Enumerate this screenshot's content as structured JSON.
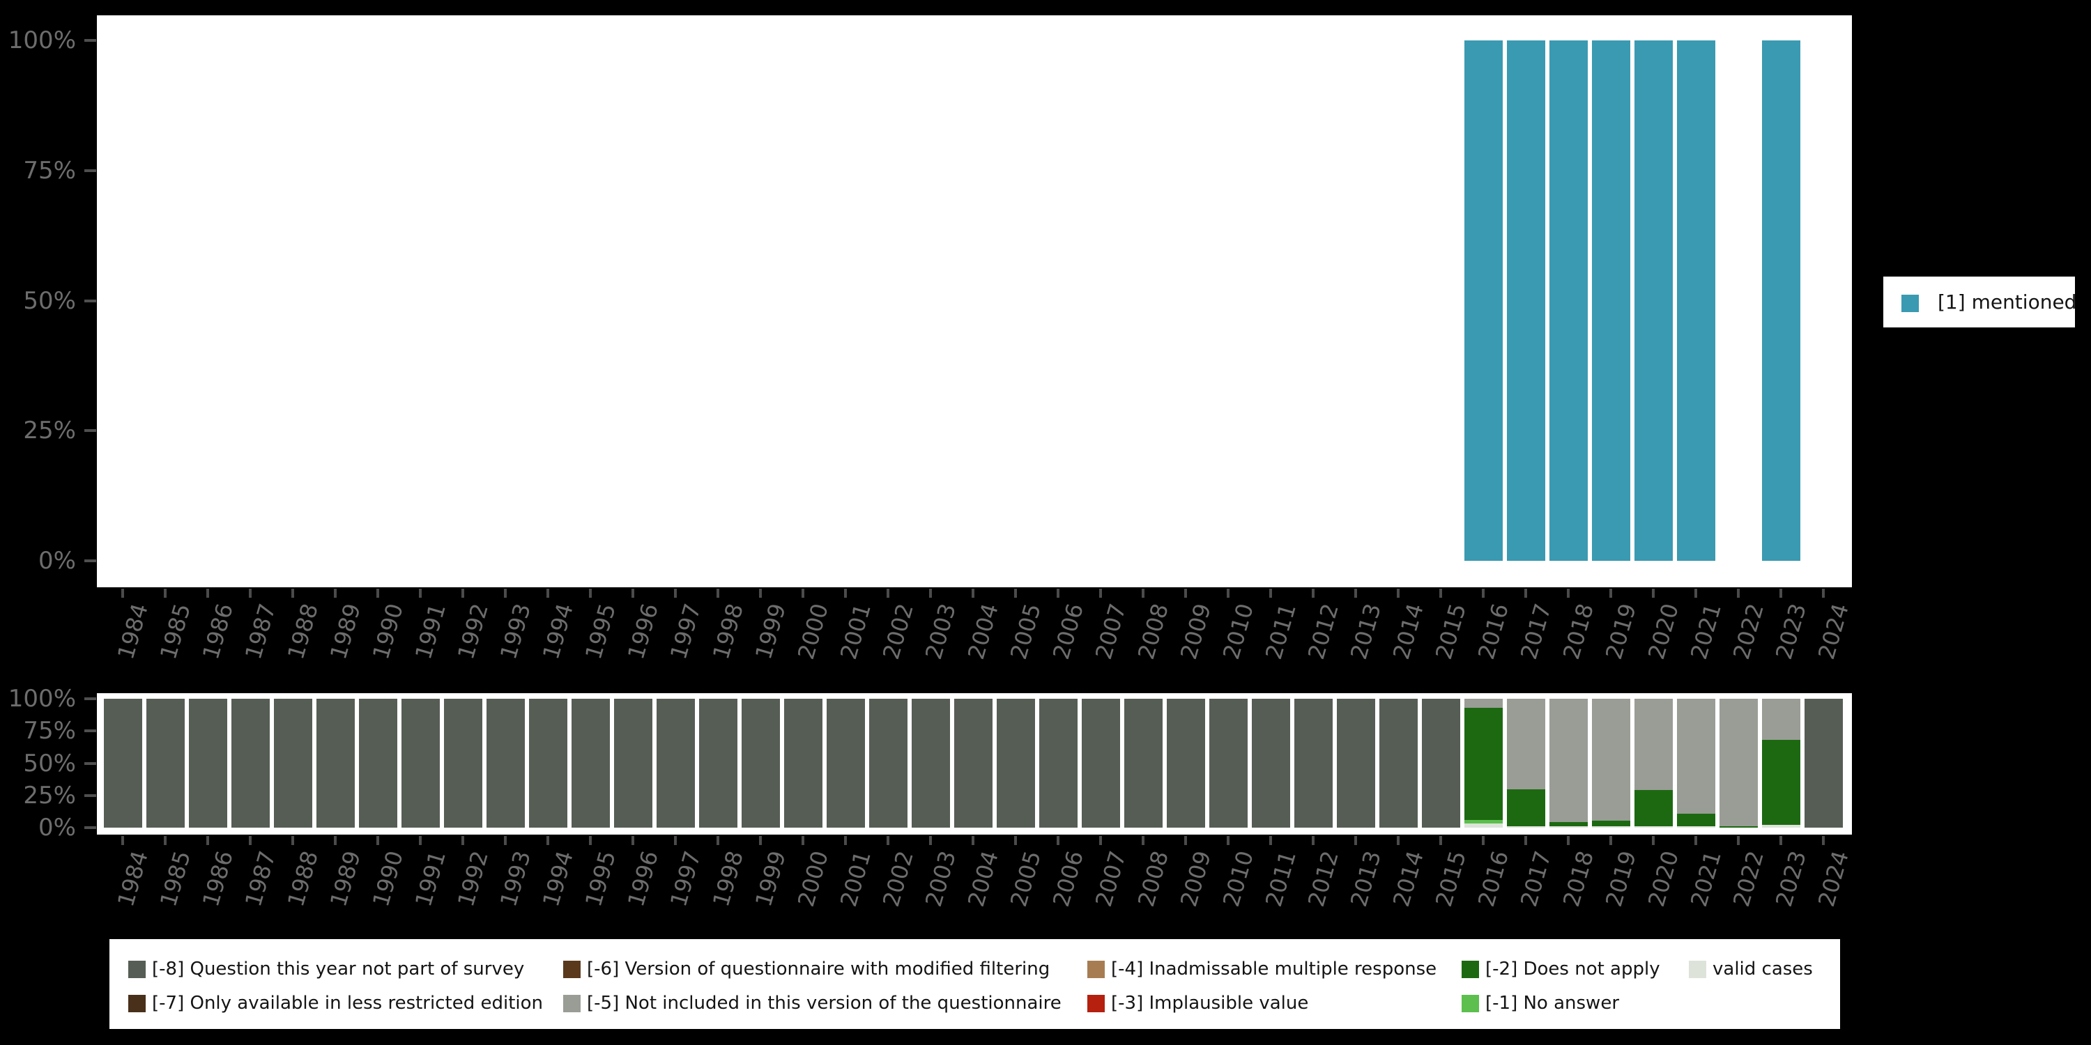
{
  "background": "#000000",
  "accent_teal": "#3a9ab1",
  "main_legend": {
    "label": "[1] mentioned",
    "color": "#3a9ab1"
  },
  "missing_legend": {
    "items": [
      {
        "label": "[-8] Question this year not part of survey",
        "color": "#565d55",
        "col": 0,
        "row": 0
      },
      {
        "label": "[-7] Only available in less restricted edition",
        "color": "#49301b",
        "col": 0,
        "row": 1
      },
      {
        "label": "[-6] Version of questionnaire with modified filtering",
        "color": "#59381b",
        "col": 1,
        "row": 0
      },
      {
        "label": "[-5] Not included in this version of the questionnaire",
        "color": "#999d95",
        "col": 1,
        "row": 1
      },
      {
        "label": "[-4] Inadmissable multiple response",
        "color": "#a87c52",
        "col": 2,
        "row": 0
      },
      {
        "label": "[-3] Implausible value",
        "color": "#b5200f",
        "col": 2,
        "row": 1
      },
      {
        "label": "[-2] Does not apply",
        "color": "#1d6912",
        "col": 3,
        "row": 0
      },
      {
        "label": "[-1] No answer",
        "color": "#5cbf4e",
        "col": 3,
        "row": 1
      },
      {
        "label": "valid cases",
        "color": "#dde3d9",
        "col": 4,
        "row": 0
      }
    ]
  },
  "chart_data": [
    {
      "type": "bar",
      "title": "",
      "categories": [
        1984,
        1985,
        1986,
        1987,
        1988,
        1989,
        1990,
        1991,
        1992,
        1993,
        1994,
        1995,
        1996,
        1997,
        1998,
        1999,
        2000,
        2001,
        2002,
        2003,
        2004,
        2005,
        2006,
        2007,
        2008,
        2009,
        2010,
        2011,
        2012,
        2013,
        2014,
        2015,
        2016,
        2017,
        2018,
        2019,
        2020,
        2021,
        2022,
        2023,
        2024
      ],
      "yticks": [
        "100%",
        "75%",
        "50%",
        "25%",
        "0%"
      ],
      "ylim": [
        0,
        100
      ],
      "legend_position": "right",
      "series": [
        {
          "name": "[1] mentioned",
          "color": "#3a9ab1",
          "values": [
            0,
            0,
            0,
            0,
            0,
            0,
            0,
            0,
            0,
            0,
            0,
            0,
            0,
            0,
            0,
            0,
            0,
            0,
            0,
            0,
            0,
            0,
            0,
            0,
            0,
            0,
            0,
            0,
            0,
            0,
            0,
            0,
            100,
            100,
            100,
            100,
            100,
            100,
            0,
            100,
            0
          ]
        }
      ]
    },
    {
      "type": "bar",
      "stacked": true,
      "title": "",
      "categories": [
        1984,
        1985,
        1986,
        1987,
        1988,
        1989,
        1990,
        1991,
        1992,
        1993,
        1994,
        1995,
        1996,
        1997,
        1998,
        1999,
        2000,
        2001,
        2002,
        2003,
        2004,
        2005,
        2006,
        2007,
        2008,
        2009,
        2010,
        2011,
        2012,
        2013,
        2014,
        2015,
        2016,
        2017,
        2018,
        2019,
        2020,
        2021,
        2022,
        2023,
        2024
      ],
      "yticks": [
        "100%",
        "75%",
        "50%",
        "25%",
        "0%"
      ],
      "ylim": [
        0,
        100
      ],
      "legend_position": "bottom",
      "series": [
        {
          "name": "[-8] Question this year not part of survey",
          "color": "#565d55",
          "values": [
            100,
            100,
            100,
            100,
            100,
            100,
            100,
            100,
            100,
            100,
            100,
            100,
            100,
            100,
            100,
            100,
            100,
            100,
            100,
            100,
            100,
            100,
            100,
            100,
            100,
            100,
            100,
            100,
            100,
            100,
            100,
            100,
            0,
            0,
            0,
            0,
            0,
            0,
            0,
            0,
            100
          ]
        },
        {
          "name": "[-7] Only available in less restricted edition",
          "color": "#49301b",
          "values": [
            0,
            0,
            0,
            0,
            0,
            0,
            0,
            0,
            0,
            0,
            0,
            0,
            0,
            0,
            0,
            0,
            0,
            0,
            0,
            0,
            0,
            0,
            0,
            0,
            0,
            0,
            0,
            0,
            0,
            0,
            0,
            0,
            0,
            0,
            0,
            0,
            0,
            0,
            0,
            0,
            0
          ]
        },
        {
          "name": "[-6] Version of questionnaire with modified filtering",
          "color": "#59381b",
          "values": [
            0,
            0,
            0,
            0,
            0,
            0,
            0,
            0,
            0,
            0,
            0,
            0,
            0,
            0,
            0,
            0,
            0,
            0,
            0,
            0,
            0,
            0,
            0,
            0,
            0,
            0,
            0,
            0,
            0,
            0,
            0,
            0,
            0,
            0,
            0,
            0,
            0,
            0,
            0,
            0,
            0
          ]
        },
        {
          "name": "[-5] Not included in this version of the questionnaire",
          "color": "#999d95",
          "values": [
            0,
            0,
            0,
            0,
            0,
            0,
            0,
            0,
            0,
            0,
            0,
            0,
            0,
            0,
            0,
            0,
            0,
            0,
            0,
            0,
            0,
            0,
            0,
            0,
            0,
            0,
            0,
            0,
            0,
            0,
            0,
            0,
            7,
            70,
            95.5,
            94.5,
            71,
            89,
            99,
            32,
            0
          ]
        },
        {
          "name": "[-4] Inadmissable multiple response",
          "color": "#a87c52",
          "values": [
            0,
            0,
            0,
            0,
            0,
            0,
            0,
            0,
            0,
            0,
            0,
            0,
            0,
            0,
            0,
            0,
            0,
            0,
            0,
            0,
            0,
            0,
            0,
            0,
            0,
            0,
            0,
            0,
            0,
            0,
            0,
            0,
            0,
            0,
            0,
            0,
            0,
            0,
            0,
            0,
            0
          ]
        },
        {
          "name": "[-3] Implausible value",
          "color": "#b5200f",
          "values": [
            0,
            0,
            0,
            0,
            0,
            0,
            0,
            0,
            0,
            0,
            0,
            0,
            0,
            0,
            0,
            0,
            0,
            0,
            0,
            0,
            0,
            0,
            0,
            0,
            0,
            0,
            0,
            0,
            0,
            0,
            0,
            0,
            0,
            0,
            0,
            0,
            0,
            0,
            0,
            0,
            0
          ]
        },
        {
          "name": "[-2] Does not apply",
          "color": "#1d6912",
          "values": [
            0,
            0,
            0,
            0,
            0,
            0,
            0,
            0,
            0,
            0,
            0,
            0,
            0,
            0,
            0,
            0,
            0,
            0,
            0,
            0,
            0,
            0,
            0,
            0,
            0,
            0,
            0,
            0,
            0,
            0,
            0,
            0,
            87,
            29,
            3.5,
            4.5,
            28,
            10,
            1,
            66,
            0
          ]
        },
        {
          "name": "[-1] No answer",
          "color": "#5cbf4e",
          "values": [
            0,
            0,
            0,
            0,
            0,
            0,
            0,
            0,
            0,
            0,
            0,
            0,
            0,
            0,
            0,
            0,
            0,
            0,
            0,
            0,
            0,
            0,
            0,
            0,
            0,
            0,
            0,
            0,
            0,
            0,
            0,
            0,
            2.5,
            0,
            0,
            0,
            0,
            0,
            0,
            0,
            0
          ]
        },
        {
          "name": "valid cases",
          "color": "#dde3d9",
          "values": [
            0,
            0,
            0,
            0,
            0,
            0,
            0,
            0,
            0,
            0,
            0,
            0,
            0,
            0,
            0,
            0,
            0,
            0,
            0,
            0,
            0,
            0,
            0,
            0,
            0,
            0,
            0,
            0,
            0,
            0,
            0,
            0,
            3.5,
            1,
            1,
            1,
            1,
            1,
            0,
            2,
            0
          ]
        }
      ]
    }
  ]
}
